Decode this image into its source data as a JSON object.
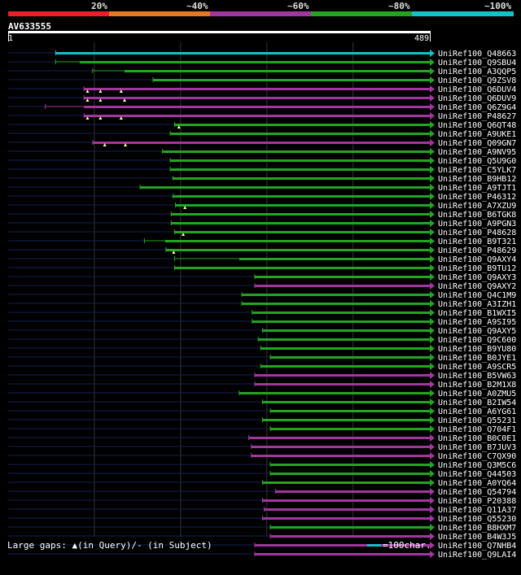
{
  "legend": [
    {
      "label": "20%",
      "color": "#e8202a"
    },
    {
      "label": "~40%",
      "color": "#e87722"
    },
    {
      "label": "~60%",
      "color": "#a236a0"
    },
    {
      "label": "~80%",
      "color": "#23a523"
    },
    {
      "label": "~100%",
      "color": "#17bfc8"
    }
  ],
  "query": {
    "id": "AV633555",
    "start": "1",
    "end": "489",
    "length": 489
  },
  "hits": [
    {
      "name": "UniRef100_Q48663",
      "color": "#17bfc8",
      "start": 55,
      "pre": [
        55,
        55
      ],
      "gaps": []
    },
    {
      "name": "UniRef100_Q9SBU4",
      "color": "#23a523",
      "start": 55,
      "pre": [
        55,
        83
      ],
      "gaps": []
    },
    {
      "name": "UniRef100_A3QQP5",
      "color": "#23a523",
      "start": 98,
      "pre": [
        98,
        135
      ],
      "gaps": []
    },
    {
      "name": "UniRef100_Q9ZSV8",
      "color": "#23a523",
      "start": 168,
      "pre": [
        168,
        168
      ],
      "gaps": []
    },
    {
      "name": "UniRef100_Q6DUV4",
      "color": "#a236a0",
      "start": 88,
      "pre": [
        88,
        88
      ],
      "gaps": [
        92,
        107,
        131
      ]
    },
    {
      "name": "UniRef100_Q6DUV9",
      "color": "#a236a0",
      "start": 88,
      "pre": [
        88,
        88
      ],
      "gaps": [
        92,
        107,
        135
      ]
    },
    {
      "name": "UniRef100_Q6Z9G4",
      "color": "#a236a0",
      "start": 43,
      "pre": [
        43,
        88
      ],
      "gaps": []
    },
    {
      "name": "UniRef100_P48627",
      "color": "#a236a0",
      "start": 88,
      "pre": [
        88,
        88
      ],
      "gaps": [
        92,
        107,
        131
      ]
    },
    {
      "name": "UniRef100_Q6QT48",
      "color": "#23a523",
      "start": 193,
      "pre": [
        193,
        193
      ],
      "gaps": [
        198
      ]
    },
    {
      "name": "UniRef100_A9UKE1",
      "color": "#23a523",
      "start": 188,
      "pre": [
        188,
        188
      ],
      "gaps": []
    },
    {
      "name": "UniRef100_Q09GN7",
      "color": "#a236a0",
      "start": 98,
      "pre": [
        98,
        98
      ],
      "gaps": [
        112,
        136
      ]
    },
    {
      "name": "UniRef100_A9NV95",
      "color": "#23a523",
      "start": 179,
      "pre": [
        179,
        179
      ],
      "gaps": []
    },
    {
      "name": "UniRef100_Q5U9G0",
      "color": "#23a523",
      "start": 188,
      "pre": [
        188,
        188
      ],
      "gaps": []
    },
    {
      "name": "UniRef100_C5YLK7",
      "color": "#23a523",
      "start": 188,
      "pre": [
        188,
        188
      ],
      "gaps": []
    },
    {
      "name": "UniRef100_B9HB12",
      "color": "#23a523",
      "start": 191,
      "pre": [
        191,
        191
      ],
      "gaps": []
    },
    {
      "name": "UniRef100_A9TJT1",
      "color": "#23a523",
      "start": 153,
      "pre": [
        153,
        153
      ],
      "gaps": []
    },
    {
      "name": "UniRef100_P46312",
      "color": "#23a523",
      "start": 191,
      "pre": [
        191,
        191
      ],
      "gaps": []
    },
    {
      "name": "UniRef100_A7XZU9",
      "color": "#23a523",
      "start": 194,
      "pre": [
        194,
        194
      ],
      "gaps": [
        205
      ]
    },
    {
      "name": "UniRef100_B6TGK8",
      "color": "#23a523",
      "start": 189,
      "pre": [
        189,
        189
      ],
      "gaps": []
    },
    {
      "name": "UniRef100_A9PGN3",
      "color": "#23a523",
      "start": 189,
      "pre": [
        189,
        189
      ],
      "gaps": []
    },
    {
      "name": "UniRef100_P48628",
      "color": "#23a523",
      "start": 193,
      "pre": [
        193,
        193
      ],
      "gaps": [
        203
      ]
    },
    {
      "name": "UniRef100_B9T321",
      "color": "#23a523",
      "start": 158,
      "pre": [
        158,
        182
      ],
      "gaps": []
    },
    {
      "name": "UniRef100_P48629",
      "color": "#23a523",
      "start": 183,
      "pre": [
        183,
        183
      ],
      "gaps": [
        192
      ]
    },
    {
      "name": "UniRef100_Q9AXY4",
      "color": "#23a523",
      "start": 193,
      "pre": [
        193,
        268
      ],
      "gaps": []
    },
    {
      "name": "UniRef100_B9TU12",
      "color": "#23a523",
      "start": 193,
      "pre": [
        193,
        193
      ],
      "gaps": []
    },
    {
      "name": "UniRef100_Q9AXY3",
      "color": "#23a523",
      "start": 286,
      "pre": [
        286,
        286
      ],
      "gaps": []
    },
    {
      "name": "UniRef100_Q9AXY2",
      "color": "#a236a0",
      "start": 286,
      "pre": [
        286,
        286
      ],
      "gaps": []
    },
    {
      "name": "UniRef100_Q4C1M9",
      "color": "#23a523",
      "start": 271,
      "pre": [
        271,
        271
      ],
      "gaps": []
    },
    {
      "name": "UniRef100_A3IZH1",
      "color": "#23a523",
      "start": 271,
      "pre": [
        271,
        271
      ],
      "gaps": []
    },
    {
      "name": "UniRef100_B1WXI5",
      "color": "#23a523",
      "start": 283,
      "pre": [
        283,
        283
      ],
      "gaps": []
    },
    {
      "name": "UniRef100_A9SI95",
      "color": "#23a523",
      "start": 283,
      "pre": [
        283,
        283
      ],
      "gaps": []
    },
    {
      "name": "UniRef100_Q9AXY5",
      "color": "#23a523",
      "start": 295,
      "pre": [
        295,
        295
      ],
      "gaps": []
    },
    {
      "name": "UniRef100_Q9C600",
      "color": "#23a523",
      "start": 290,
      "pre": [
        290,
        290
      ],
      "gaps": []
    },
    {
      "name": "UniRef100_B9YU80",
      "color": "#23a523",
      "start": 293,
      "pre": [
        293,
        293
      ],
      "gaps": []
    },
    {
      "name": "UniRef100_B0JYE1",
      "color": "#23a523",
      "start": 304,
      "pre": [
        304,
        304
      ],
      "gaps": []
    },
    {
      "name": "UniRef100_A9SCR5",
      "color": "#23a523",
      "start": 293,
      "pre": [
        293,
        293
      ],
      "gaps": []
    },
    {
      "name": "UniRef100_B5VW63",
      "color": "#a236a0",
      "start": 286,
      "pre": [
        286,
        286
      ],
      "gaps": []
    },
    {
      "name": "UniRef100_B2M1X8",
      "color": "#a236a0",
      "start": 286,
      "pre": [
        286,
        286
      ],
      "gaps": []
    },
    {
      "name": "UniRef100_A0ZMU5",
      "color": "#23a523",
      "start": 268,
      "pre": [
        268,
        268
      ],
      "gaps": []
    },
    {
      "name": "UniRef100_B2IW54",
      "color": "#23a523",
      "start": 295,
      "pre": [
        295,
        295
      ],
      "gaps": []
    },
    {
      "name": "UniRef100_A6YG61",
      "color": "#23a523",
      "start": 304,
      "pre": [
        304,
        304
      ],
      "gaps": []
    },
    {
      "name": "UniRef100_Q55231",
      "color": "#23a523",
      "start": 295,
      "pre": [
        295,
        295
      ],
      "gaps": []
    },
    {
      "name": "UniRef100_Q704F1",
      "color": "#23a523",
      "start": 304,
      "pre": [
        304,
        304
      ],
      "gaps": []
    },
    {
      "name": "UniRef100_B0C0E1",
      "color": "#a236a0",
      "start": 279,
      "pre": [
        279,
        279
      ],
      "gaps": []
    },
    {
      "name": "UniRef100_B7JUV3",
      "color": "#a236a0",
      "start": 282,
      "pre": [
        282,
        282
      ],
      "gaps": []
    },
    {
      "name": "UniRef100_C7QX90",
      "color": "#a236a0",
      "start": 282,
      "pre": [
        282,
        282
      ],
      "gaps": []
    },
    {
      "name": "UniRef100_Q3M5C6",
      "color": "#23a523",
      "start": 304,
      "pre": [
        304,
        304
      ],
      "gaps": []
    },
    {
      "name": "UniRef100_Q44503",
      "color": "#23a523",
      "start": 304,
      "pre": [
        304,
        304
      ],
      "gaps": []
    },
    {
      "name": "UniRef100_A0YQ64",
      "color": "#23a523",
      "start": 295,
      "pre": [
        295,
        295
      ],
      "gaps": []
    },
    {
      "name": "UniRef100_Q54794",
      "color": "#a236a0",
      "start": 310,
      "pre": [
        310,
        310
      ],
      "gaps": []
    },
    {
      "name": "UniRef100_P20388",
      "color": "#a236a0",
      "start": 295,
      "pre": [
        295,
        295
      ],
      "gaps": []
    },
    {
      "name": "UniRef100_Q11A37",
      "color": "#a236a0",
      "start": 297,
      "pre": [
        297,
        297
      ],
      "gaps": []
    },
    {
      "name": "UniRef100_Q55230",
      "color": "#a236a0",
      "start": 295,
      "pre": [
        295,
        295
      ],
      "gaps": []
    },
    {
      "name": "UniRef100_B8HXM7",
      "color": "#23a523",
      "start": 304,
      "pre": [
        304,
        304
      ],
      "gaps": []
    },
    {
      "name": "UniRef100_B4W3J5",
      "color": "#a236a0",
      "start": 304,
      "pre": [
        304,
        304
      ],
      "gaps": []
    },
    {
      "name": "UniRef100_Q7NHB4",
      "color": "#a236a0",
      "start": 286,
      "pre": [
        286,
        286
      ],
      "gaps": []
    },
    {
      "name": "UniRef100_Q9LAI4",
      "color": "#a236a0",
      "start": 286,
      "pre": [
        286,
        286
      ],
      "gaps": []
    }
  ],
  "footer": {
    "gaps_text": "Large gaps: ▲(in Query)/- (in Subject)",
    "scale_text": "=100char."
  }
}
